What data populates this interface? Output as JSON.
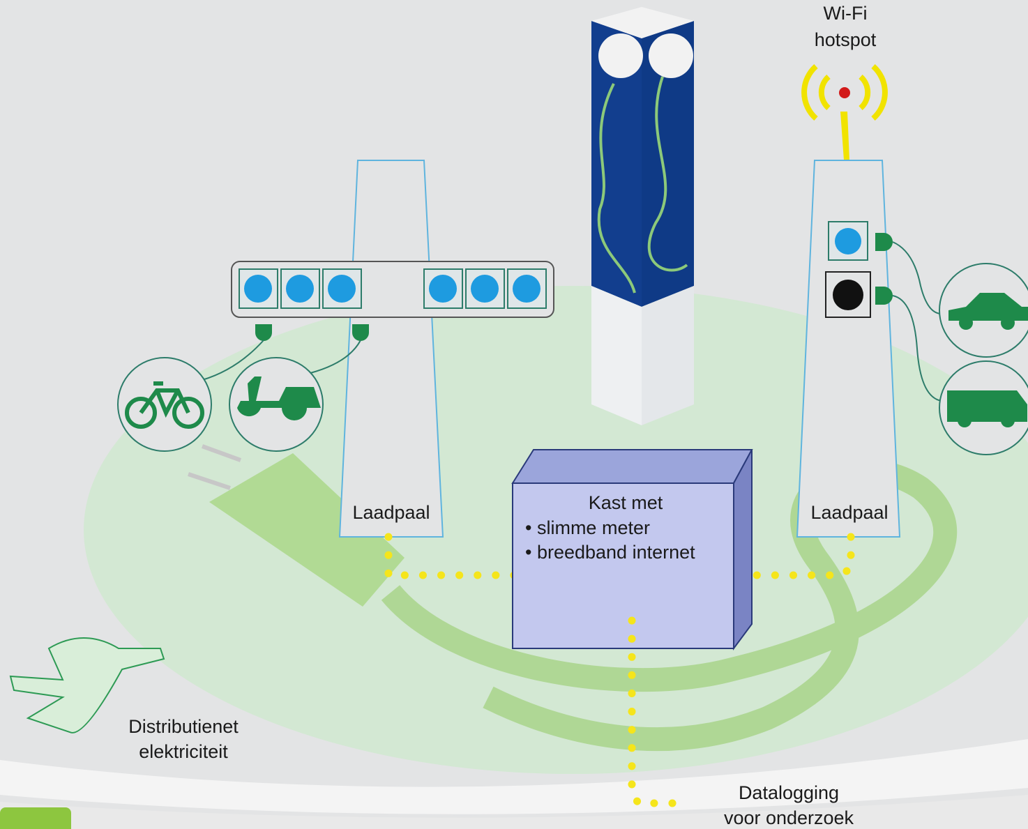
{
  "wifi": {
    "label": [
      "Wi-Fi",
      "hotspot"
    ]
  },
  "poles": [
    {
      "label": "Laadpaal"
    },
    {
      "label": "Laadpaal"
    }
  ],
  "cabinet": {
    "title": "Kast met",
    "items": [
      "• slimme meter",
      "• breedband internet"
    ]
  },
  "grid": {
    "label": [
      "Distributienet",
      "elektriciteit"
    ]
  },
  "datalogging": {
    "label": [
      "Datalogging",
      "voor onderzoek"
    ]
  }
}
